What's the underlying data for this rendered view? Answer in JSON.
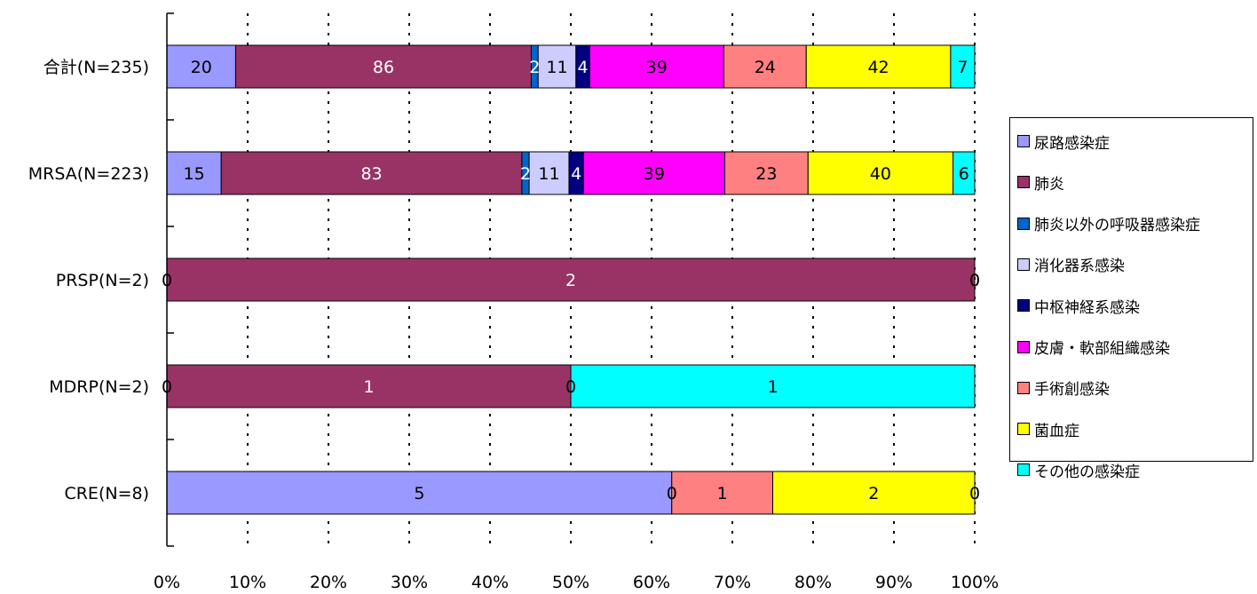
{
  "chart_data": {
    "type": "bar",
    "orientation": "horizontal",
    "stacked": "percent",
    "categories": [
      "合計(N=235)",
      "MRSA(N=223)",
      "PRSP(N=2)",
      "MDRP(N=2)",
      "CRE(N=8)"
    ],
    "series": [
      {
        "name": "尿路感染症",
        "color": "#9999FF",
        "text_color": "#000000",
        "values": [
          20,
          15,
          0,
          0,
          5
        ]
      },
      {
        "name": "肺炎",
        "color": "#993366",
        "text_color": "#FFFFFF",
        "values": [
          86,
          83,
          2,
          1,
          0
        ]
      },
      {
        "name": "肺炎以外の呼吸器感染症",
        "color": "#0066CC",
        "text_color": "#FFFFFF",
        "values": [
          2,
          2,
          0,
          0,
          0
        ]
      },
      {
        "name": "消化器系感染",
        "color": "#CCCCFF",
        "text_color": "#000000",
        "values": [
          11,
          11,
          0,
          0,
          0
        ]
      },
      {
        "name": "中枢神経系感染",
        "color": "#000080",
        "text_color": "#FFFFFF",
        "values": [
          4,
          4,
          0,
          0,
          0
        ]
      },
      {
        "name": "皮膚・軟部組織感染",
        "color": "#FF00FF",
        "text_color": "#000000",
        "values": [
          39,
          39,
          0,
          0,
          0
        ]
      },
      {
        "name": "手術創感染",
        "color": "#FF8080",
        "text_color": "#000000",
        "values": [
          24,
          23,
          0,
          0,
          1
        ]
      },
      {
        "name": "菌血症",
        "color": "#FFFF00",
        "text_color": "#000000",
        "values": [
          42,
          40,
          0,
          0,
          2
        ]
      },
      {
        "name": "その他の感染症",
        "color": "#00FFFF",
        "text_color": "#000000",
        "values": [
          7,
          6,
          0,
          1,
          0
        ]
      }
    ],
    "visible_zero_labels": [
      {
        "category": 2,
        "series": 0
      },
      {
        "category": 2,
        "series": 2
      },
      {
        "category": 2,
        "series": 8
      },
      {
        "category": 3,
        "series": 0
      },
      {
        "category": 3,
        "series": 2
      },
      {
        "category": 4,
        "series": 4
      },
      {
        "category": 4,
        "series": 8
      }
    ],
    "x_ticks": [
      "0%",
      "10%",
      "20%",
      "30%",
      "40%",
      "50%",
      "60%",
      "70%",
      "80%",
      "90%",
      "100%"
    ],
    "xlim": [
      0,
      100
    ],
    "grid": "vertical dotted",
    "legend_position": "right"
  }
}
